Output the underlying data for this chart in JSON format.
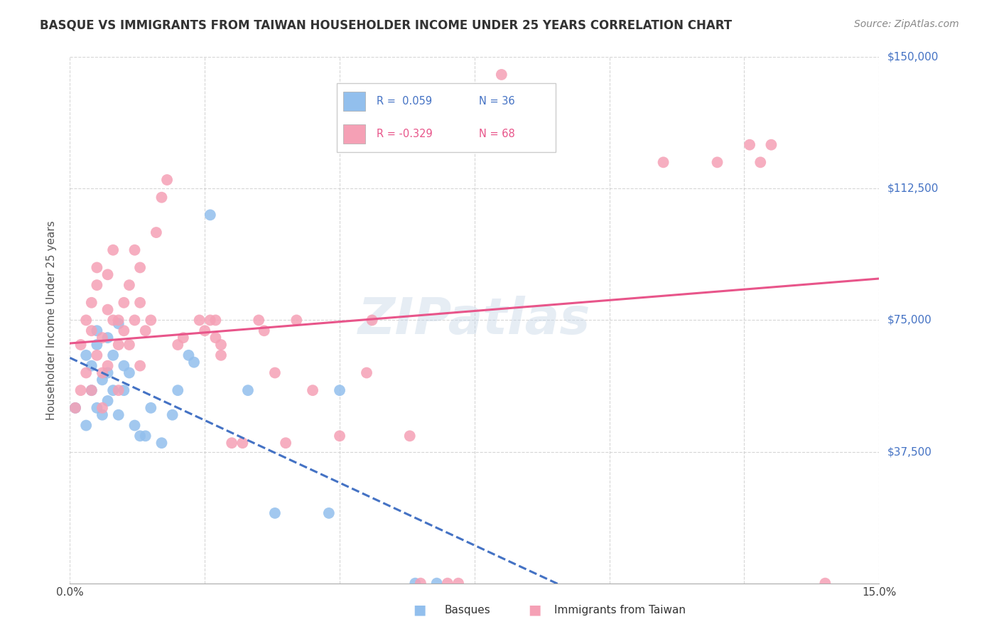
{
  "title": "BASQUE VS IMMIGRANTS FROM TAIWAN HOUSEHOLDER INCOME UNDER 25 YEARS CORRELATION CHART",
  "source": "Source: ZipAtlas.com",
  "ylabel": "Householder Income Under 25 years",
  "xlim": [
    0,
    0.15
  ],
  "ylim": [
    0,
    150000
  ],
  "ytick_labels": [
    "$150,000",
    "$112,500",
    "$75,000",
    "$37,500"
  ],
  "ytick_values": [
    150000,
    112500,
    75000,
    37500
  ],
  "blue_color": "#92bfed",
  "pink_color": "#f5a0b5",
  "blue_line_color": "#4472c4",
  "pink_line_color": "#e8558a",
  "blue_scatter_x": [
    0.001,
    0.003,
    0.003,
    0.004,
    0.004,
    0.005,
    0.005,
    0.005,
    0.006,
    0.006,
    0.007,
    0.007,
    0.007,
    0.008,
    0.008,
    0.009,
    0.009,
    0.01,
    0.01,
    0.011,
    0.012,
    0.013,
    0.014,
    0.015,
    0.017,
    0.019,
    0.02,
    0.022,
    0.023,
    0.026,
    0.033,
    0.038,
    0.048,
    0.05,
    0.064,
    0.068
  ],
  "blue_scatter_y": [
    50000,
    45000,
    65000,
    55000,
    62000,
    50000,
    68000,
    72000,
    48000,
    58000,
    52000,
    60000,
    70000,
    55000,
    65000,
    48000,
    74000,
    55000,
    62000,
    60000,
    45000,
    42000,
    42000,
    50000,
    40000,
    48000,
    55000,
    65000,
    63000,
    105000,
    55000,
    20000,
    20000,
    55000,
    0,
    0
  ],
  "pink_scatter_x": [
    0.001,
    0.002,
    0.002,
    0.003,
    0.003,
    0.004,
    0.004,
    0.004,
    0.005,
    0.005,
    0.005,
    0.006,
    0.006,
    0.006,
    0.007,
    0.007,
    0.007,
    0.008,
    0.008,
    0.009,
    0.009,
    0.009,
    0.01,
    0.01,
    0.011,
    0.011,
    0.012,
    0.012,
    0.013,
    0.013,
    0.013,
    0.014,
    0.015,
    0.016,
    0.017,
    0.018,
    0.02,
    0.021,
    0.024,
    0.025,
    0.026,
    0.027,
    0.027,
    0.028,
    0.028,
    0.03,
    0.032,
    0.035,
    0.036,
    0.038,
    0.04,
    0.042,
    0.045,
    0.05,
    0.055,
    0.056,
    0.063,
    0.065,
    0.07,
    0.072,
    0.08,
    0.082,
    0.11,
    0.12,
    0.126,
    0.128,
    0.13,
    0.14
  ],
  "pink_scatter_y": [
    50000,
    55000,
    68000,
    60000,
    75000,
    55000,
    72000,
    80000,
    65000,
    85000,
    90000,
    50000,
    60000,
    70000,
    62000,
    78000,
    88000,
    75000,
    95000,
    55000,
    68000,
    75000,
    72000,
    80000,
    68000,
    85000,
    75000,
    95000,
    62000,
    80000,
    90000,
    72000,
    75000,
    100000,
    110000,
    115000,
    68000,
    70000,
    75000,
    72000,
    75000,
    70000,
    75000,
    65000,
    68000,
    40000,
    40000,
    75000,
    72000,
    60000,
    40000,
    75000,
    55000,
    42000,
    60000,
    75000,
    42000,
    0,
    0,
    0,
    145000,
    140000,
    120000,
    120000,
    125000,
    120000,
    125000,
    0
  ]
}
